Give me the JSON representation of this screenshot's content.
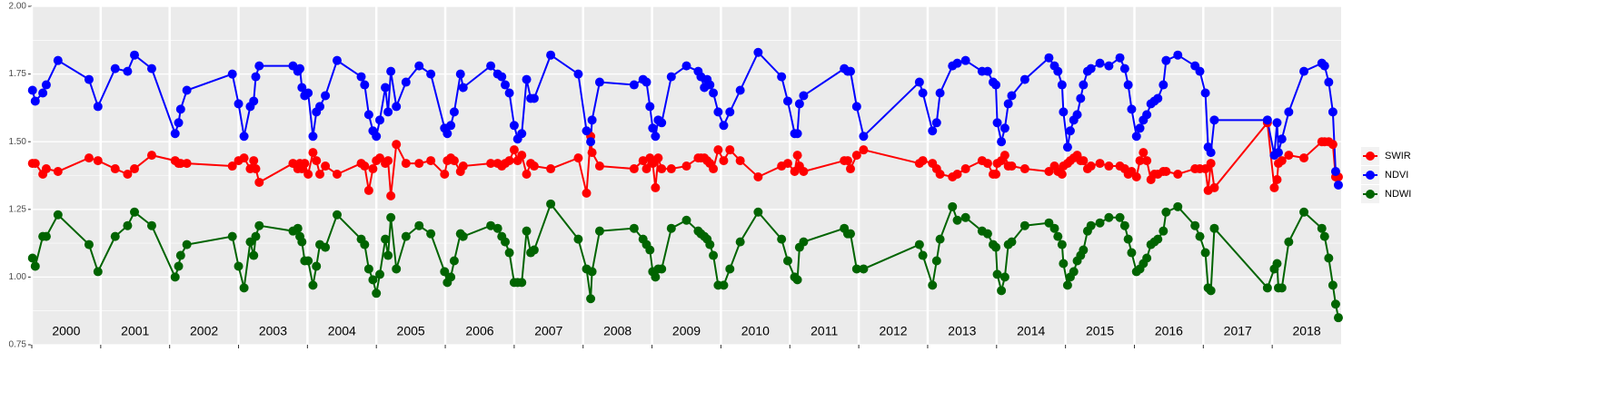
{
  "chart_data": {
    "type": "line",
    "xlim": [
      2000,
      2019
    ],
    "xticks": [
      2000,
      2001,
      2002,
      2003,
      2004,
      2005,
      2006,
      2007,
      2008,
      2009,
      2010,
      2011,
      2012,
      2013,
      2014,
      2015,
      2016,
      2017,
      2018
    ],
    "year_labels": [
      {
        "value": 2000.5,
        "label": "2000"
      },
      {
        "value": 2001.5,
        "label": "2001"
      },
      {
        "value": 2002.5,
        "label": "2002"
      },
      {
        "value": 2003.5,
        "label": "2003"
      },
      {
        "value": 2004.5,
        "label": "2004"
      },
      {
        "value": 2005.5,
        "label": "2005"
      },
      {
        "value": 2006.5,
        "label": "2006"
      },
      {
        "value": 2007.5,
        "label": "2007"
      },
      {
        "value": 2008.5,
        "label": "2008"
      },
      {
        "value": 2009.5,
        "label": "2009"
      },
      {
        "value": 2010.5,
        "label": "2010"
      },
      {
        "value": 2011.5,
        "label": "2011"
      },
      {
        "value": 2012.5,
        "label": "2012"
      },
      {
        "value": 2013.5,
        "label": "2013"
      },
      {
        "value": 2014.5,
        "label": "2014"
      },
      {
        "value": 2015.5,
        "label": "2015"
      },
      {
        "value": 2016.5,
        "label": "2016"
      },
      {
        "value": 2017.5,
        "label": "2017"
      },
      {
        "value": 2018.5,
        "label": "2018"
      }
    ],
    "ylim": [
      0.75,
      2.0
    ],
    "yticks": [
      {
        "value": 0.75,
        "label": "0.75"
      },
      {
        "value": 1.0,
        "label": "1.00"
      },
      {
        "value": 1.25,
        "label": "1.25"
      },
      {
        "value": 1.5,
        "label": "1.50"
      },
      {
        "value": 1.75,
        "label": "1.75"
      },
      {
        "value": 2.0,
        "label": "2.00"
      }
    ],
    "grid": true,
    "legend": "right",
    "x": [
      2000.01,
      2000.05,
      2000.16,
      2000.21,
      2000.38,
      2000.83,
      2000.96,
      2001.21,
      2001.39,
      2001.49,
      2001.74,
      2002.08,
      2002.13,
      2002.16,
      2002.25,
      2002.91,
      2003.0,
      2003.08,
      2003.17,
      2003.22,
      2003.25,
      2003.3,
      2003.79,
      2003.86,
      2003.89,
      2003.92,
      2003.96,
      2004.01,
      2004.08,
      2004.13,
      2004.18,
      2004.26,
      2004.43,
      2004.78,
      2004.83,
      2004.89,
      2004.95,
      2005.0,
      2005.05,
      2005.13,
      2005.17,
      2005.21,
      2005.29,
      2005.43,
      2005.62,
      2005.79,
      2005.99,
      2006.03,
      2006.08,
      2006.13,
      2006.22,
      2006.26,
      2006.66,
      2006.76,
      2006.82,
      2006.87,
      2006.93,
      2007.0,
      2007.05,
      2007.11,
      2007.18,
      2007.24,
      2007.29,
      2007.53,
      2007.93,
      2008.05,
      2008.11,
      2008.13,
      2008.24,
      2008.74,
      2008.87,
      2008.92,
      2008.97,
      2009.01,
      2009.05,
      2009.09,
      2009.14,
      2009.28,
      2009.5,
      2009.67,
      2009.71,
      2009.76,
      2009.8,
      2009.84,
      2009.89,
      2009.96,
      2010.04,
      2010.13,
      2010.28,
      2010.54,
      2010.88,
      2010.97,
      2011.07,
      2011.11,
      2011.14,
      2011.2,
      2011.79,
      2011.84,
      2011.88,
      2011.97,
      2012.07,
      2012.88,
      2012.93,
      2013.07,
      2013.13,
      2013.18,
      2013.36,
      2013.43,
      2013.55,
      2013.79,
      2013.87,
      2013.95,
      2013.99,
      2014.01,
      2014.07,
      2014.12,
      2014.17,
      2014.22,
      2014.41,
      2014.76,
      2014.84,
      2014.89,
      2014.95,
      2014.97,
      2015.03,
      2015.07,
      2015.12,
      2015.17,
      2015.22,
      2015.26,
      2015.32,
      2015.37,
      2015.5,
      2015.63,
      2015.79,
      2015.86,
      2015.91,
      2015.96,
      2016.03,
      2016.08,
      2016.13,
      2016.18,
      2016.24,
      2016.29,
      2016.34,
      2016.42,
      2016.46,
      2016.63,
      2016.88,
      2016.95,
      2017.03,
      2017.07,
      2017.11,
      2017.16,
      2017.93,
      2018.03,
      2018.07,
      2018.09,
      2018.14,
      2018.24,
      2018.46,
      2018.72,
      2018.76,
      2018.82,
      2018.88,
      2018.92,
      2018.96
    ],
    "series": [
      {
        "name": "SWIR",
        "color": "#ff0000",
        "values": [
          1.42,
          1.42,
          1.38,
          1.4,
          1.39,
          1.44,
          1.43,
          1.4,
          1.38,
          1.4,
          1.45,
          1.43,
          1.42,
          1.42,
          1.42,
          1.41,
          1.43,
          1.44,
          1.4,
          1.43,
          1.4,
          1.35,
          1.42,
          1.4,
          1.42,
          1.4,
          1.42,
          1.38,
          1.46,
          1.43,
          1.38,
          1.41,
          1.38,
          1.42,
          1.41,
          1.32,
          1.4,
          1.43,
          1.44,
          1.42,
          1.43,
          1.3,
          1.49,
          1.42,
          1.42,
          1.43,
          1.38,
          1.43,
          1.44,
          1.43,
          1.39,
          1.41,
          1.42,
          1.42,
          1.41,
          1.42,
          1.43,
          1.47,
          1.43,
          1.45,
          1.38,
          1.42,
          1.41,
          1.4,
          1.44,
          1.31,
          1.52,
          1.46,
          1.41,
          1.4,
          1.43,
          1.4,
          1.44,
          1.42,
          1.33,
          1.44,
          1.4,
          1.4,
          1.41,
          1.44,
          1.44,
          1.44,
          1.43,
          1.42,
          1.4,
          1.47,
          1.43,
          1.47,
          1.43,
          1.37,
          1.41,
          1.42,
          1.39,
          1.45,
          1.41,
          1.39,
          1.43,
          1.43,
          1.4,
          1.45,
          1.47,
          1.42,
          1.43,
          1.42,
          1.4,
          1.38,
          1.37,
          1.38,
          1.4,
          1.43,
          1.42,
          1.38,
          1.38,
          1.42,
          1.43,
          1.45,
          1.41,
          1.41,
          1.4,
          1.39,
          1.41,
          1.39,
          1.38,
          1.41,
          1.42,
          1.43,
          1.44,
          1.45,
          1.43,
          1.43,
          1.4,
          1.41,
          1.42,
          1.41,
          1.41,
          1.4,
          1.38,
          1.39,
          1.37,
          1.43,
          1.46,
          1.43,
          1.36,
          1.38,
          1.38,
          1.39,
          1.39,
          1.38,
          1.4,
          1.4,
          1.4,
          1.32,
          1.42,
          1.33,
          1.57,
          1.33,
          1.36,
          1.42,
          1.43,
          1.45,
          1.44,
          1.5,
          1.5,
          1.5,
          1.49,
          1.37,
          1.37
        ]
      },
      {
        "name": "NDVI",
        "color": "#0000ff",
        "values": [
          1.69,
          1.65,
          1.68,
          1.71,
          1.8,
          1.73,
          1.63,
          1.77,
          1.76,
          1.82,
          1.77,
          1.53,
          1.57,
          1.62,
          1.69,
          1.75,
          1.64,
          1.52,
          1.63,
          1.65,
          1.74,
          1.78,
          1.78,
          1.76,
          1.77,
          1.7,
          1.67,
          1.68,
          1.52,
          1.61,
          1.63,
          1.67,
          1.8,
          1.74,
          1.71,
          1.6,
          1.54,
          1.52,
          1.58,
          1.7,
          1.61,
          1.76,
          1.63,
          1.72,
          1.78,
          1.75,
          1.55,
          1.53,
          1.56,
          1.61,
          1.75,
          1.7,
          1.78,
          1.75,
          1.74,
          1.71,
          1.68,
          1.56,
          1.51,
          1.53,
          1.73,
          1.66,
          1.66,
          1.82,
          1.75,
          1.54,
          1.5,
          1.58,
          1.72,
          1.71,
          1.73,
          1.72,
          1.63,
          1.55,
          1.52,
          1.58,
          1.57,
          1.74,
          1.78,
          1.76,
          1.74,
          1.7,
          1.73,
          1.71,
          1.68,
          1.61,
          1.56,
          1.61,
          1.69,
          1.83,
          1.74,
          1.65,
          1.53,
          1.53,
          1.64,
          1.67,
          1.77,
          1.76,
          1.76,
          1.63,
          1.52,
          1.72,
          1.68,
          1.54,
          1.57,
          1.68,
          1.78,
          1.79,
          1.8,
          1.76,
          1.76,
          1.72,
          1.71,
          1.57,
          1.5,
          1.55,
          1.64,
          1.67,
          1.73,
          1.81,
          1.78,
          1.76,
          1.71,
          1.61,
          1.48,
          1.54,
          1.58,
          1.6,
          1.66,
          1.71,
          1.76,
          1.77,
          1.79,
          1.78,
          1.81,
          1.77,
          1.71,
          1.62,
          1.52,
          1.55,
          1.58,
          1.6,
          1.64,
          1.65,
          1.66,
          1.71,
          1.8,
          1.82,
          1.78,
          1.76,
          1.68,
          1.48,
          1.46,
          1.58,
          1.58,
          1.45,
          1.57,
          1.46,
          1.51,
          1.61,
          1.76,
          1.79,
          1.78,
          1.72,
          1.61,
          1.39,
          1.34
        ]
      },
      {
        "name": "NDWI",
        "color": "#006400",
        "values": [
          1.07,
          1.04,
          1.15,
          1.15,
          1.23,
          1.12,
          1.02,
          1.15,
          1.19,
          1.24,
          1.19,
          1.0,
          1.04,
          1.08,
          1.12,
          1.15,
          1.04,
          0.96,
          1.13,
          1.08,
          1.15,
          1.19,
          1.17,
          1.18,
          1.15,
          1.13,
          1.06,
          1.06,
          0.97,
          1.04,
          1.12,
          1.11,
          1.23,
          1.14,
          1.12,
          1.03,
          0.99,
          0.94,
          1.01,
          1.14,
          1.08,
          1.22,
          1.03,
          1.15,
          1.19,
          1.16,
          1.02,
          0.98,
          1.0,
          1.06,
          1.16,
          1.15,
          1.19,
          1.18,
          1.15,
          1.13,
          1.09,
          0.98,
          0.98,
          0.98,
          1.17,
          1.09,
          1.1,
          1.27,
          1.14,
          1.03,
          0.92,
          1.02,
          1.17,
          1.18,
          1.14,
          1.12,
          1.1,
          1.02,
          1.0,
          1.03,
          1.03,
          1.18,
          1.21,
          1.17,
          1.16,
          1.15,
          1.14,
          1.12,
          1.08,
          0.97,
          0.97,
          1.03,
          1.13,
          1.24,
          1.14,
          1.06,
          1.0,
          0.99,
          1.11,
          1.13,
          1.18,
          1.16,
          1.16,
          1.03,
          1.03,
          1.12,
          1.08,
          0.97,
          1.06,
          1.14,
          1.26,
          1.21,
          1.22,
          1.17,
          1.16,
          1.12,
          1.11,
          1.01,
          0.95,
          1.0,
          1.12,
          1.13,
          1.19,
          1.2,
          1.18,
          1.15,
          1.12,
          1.05,
          0.97,
          1.0,
          1.02,
          1.06,
          1.08,
          1.1,
          1.17,
          1.19,
          1.2,
          1.22,
          1.22,
          1.19,
          1.14,
          1.09,
          1.02,
          1.03,
          1.05,
          1.07,
          1.12,
          1.13,
          1.14,
          1.17,
          1.24,
          1.26,
          1.19,
          1.15,
          1.09,
          0.96,
          0.95,
          1.18,
          0.96,
          1.03,
          1.05,
          0.96,
          0.96,
          1.13,
          1.24,
          1.18,
          1.15,
          1.07,
          0.97,
          0.9,
          0.85
        ]
      }
    ]
  }
}
